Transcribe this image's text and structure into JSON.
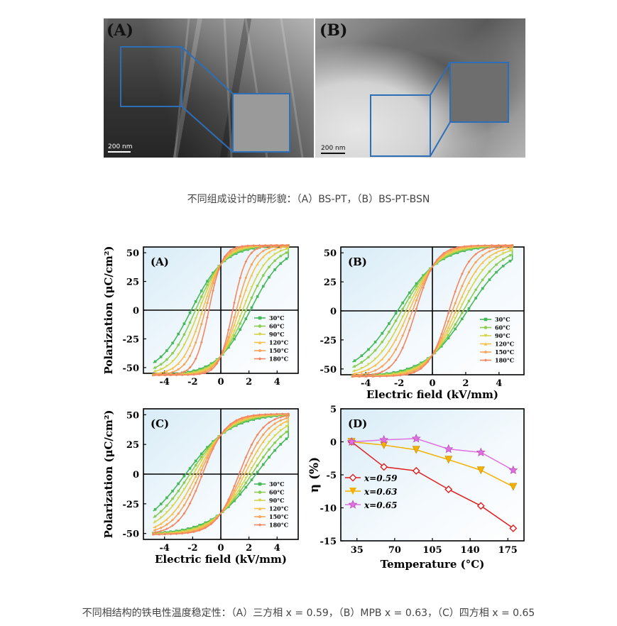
{
  "top_figure": {
    "panels": [
      {
        "label": "(A)",
        "scale_bar": "200 nm"
      },
      {
        "label": "(B)",
        "scale_bar": "200 nm"
      }
    ],
    "caption": "不同组成设计的畴形貌：（A）BS-PT，（B）BS-PT-BSN"
  },
  "bottom_figure": {
    "caption": "不同相结构的铁电性温度稳定性：（A）三方相 x = 0.59，（B）MPB x = 0.63，（C）四方相 x = 0.65",
    "colors": {
      "30": "#46b85a",
      "60": "#8ccc52",
      "90": "#d2d64a",
      "120": "#f7c04a",
      "150": "#f7a45a",
      "180": "#f38660",
      "x059": "#e02020",
      "x063": "#f4b000",
      "x065": "#e070e0"
    }
  },
  "chart_data": [
    {
      "type": "line",
      "panel_label": "(A)",
      "xlabel": "",
      "ylabel": "Polarization (μC/cm²)",
      "xlim": [
        -5.5,
        5.5
      ],
      "ylim": [
        -55,
        55
      ],
      "xticks": [
        "-4",
        "-2",
        "0",
        "2",
        "4"
      ],
      "yticks": [
        "-50",
        "-25",
        "0",
        "25",
        "50"
      ],
      "Pmax": 50,
      "Pr": 40,
      "Emax": 4.8,
      "series": [
        {
          "name": "30°C",
          "Ec": 2.1
        },
        {
          "name": "60°C",
          "Ec": 1.8
        },
        {
          "name": "90°C",
          "Ec": 1.55
        },
        {
          "name": "120°C",
          "Ec": 1.3
        },
        {
          "name": "150°C",
          "Ec": 1.1
        },
        {
          "name": "180°C",
          "Ec": 0.85
        }
      ]
    },
    {
      "type": "line",
      "panel_label": "(B)",
      "xlabel": "Electric field (kV/mm)",
      "ylabel": "",
      "xlim": [
        -5.5,
        5.5
      ],
      "ylim": [
        -55,
        55
      ],
      "xticks": [
        "-4",
        "-2",
        "0",
        "2",
        "4"
      ],
      "yticks": [
        "-50",
        "-25",
        "0",
        "25",
        "50"
      ],
      "Pmax": 50,
      "Pr": 38,
      "Emax": 4.8,
      "series": [
        {
          "name": "30°C",
          "Ec": 2.1
        },
        {
          "name": "60°C",
          "Ec": 1.85
        },
        {
          "name": "90°C",
          "Ec": 1.6
        },
        {
          "name": "120°C",
          "Ec": 1.4
        },
        {
          "name": "150°C",
          "Ec": 1.2
        },
        {
          "name": "180°C",
          "Ec": 1.0
        }
      ]
    },
    {
      "type": "line",
      "panel_label": "(C)",
      "xlabel": "Electric field (kV/mm)",
      "ylabel": "Polarization (μC/cm²)",
      "xlim": [
        -5.5,
        5.5
      ],
      "ylim": [
        -55,
        55
      ],
      "xticks": [
        "-4",
        "-2",
        "0",
        "2",
        "4"
      ],
      "yticks": [
        "-50",
        "-25",
        "0",
        "25",
        "50"
      ],
      "Pmax": 45,
      "Pr": 33,
      "Emax": 4.8,
      "series": [
        {
          "name": "30°C",
          "Ec": 2.5
        },
        {
          "name": "60°C",
          "Ec": 2.2
        },
        {
          "name": "90°C",
          "Ec": 1.95
        },
        {
          "name": "120°C",
          "Ec": 1.7
        },
        {
          "name": "150°C",
          "Ec": 1.5
        },
        {
          "name": "180°C",
          "Ec": 1.3
        }
      ]
    },
    {
      "type": "line",
      "panel_label": "(D)",
      "xlabel": "Temperature (°C)",
      "ylabel": "η (%)",
      "xlim": [
        20,
        190
      ],
      "ylim": [
        -15,
        5
      ],
      "xticks": [
        "35",
        "70",
        "105",
        "140",
        "175"
      ],
      "yticks": [
        "5",
        "0",
        "-5",
        "-10",
        "-15"
      ],
      "x": [
        30,
        60,
        90,
        120,
        150,
        180
      ],
      "series": [
        {
          "name": "x=0.59",
          "values": [
            0,
            -3.8,
            -4.4,
            -7.2,
            -9.7,
            -13.1
          ]
        },
        {
          "name": "x=0.63",
          "values": [
            0,
            -0.5,
            -1.2,
            -2.7,
            -4.3,
            -6.8
          ]
        },
        {
          "name": "x=0.65",
          "values": [
            0,
            0.3,
            0.5,
            -1.1,
            -1.6,
            -4.3
          ]
        }
      ]
    }
  ]
}
